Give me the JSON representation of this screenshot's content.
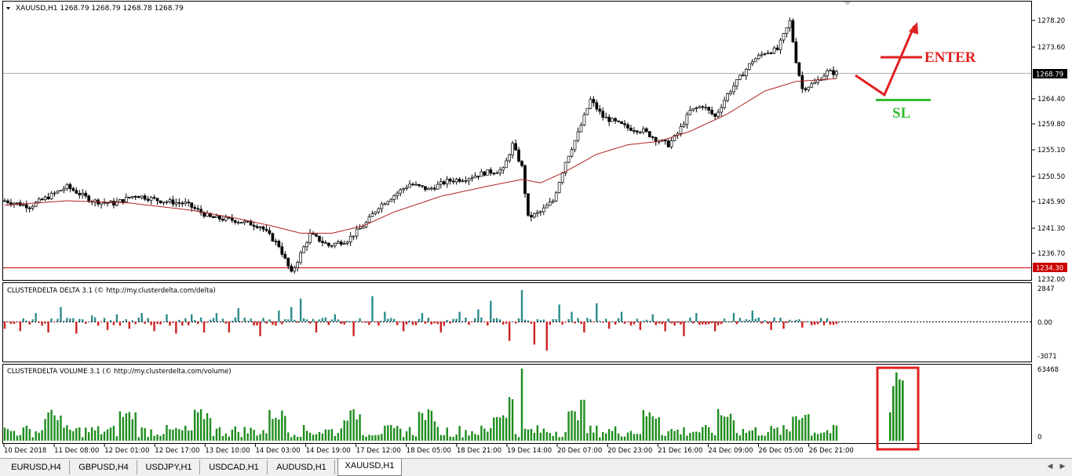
{
  "chart_data": [
    {
      "type": "candlestick",
      "title": "XAUUSD,H1  1268.79 1268.79 1268.78 1268.79",
      "ylim": [
        1232.0,
        1280.3
      ],
      "yticks": [
        "1278.20",
        "1273.60",
        "1268.79",
        "1264.40",
        "1259.80",
        "1255.10",
        "1250.50",
        "1245.90",
        "1241.30",
        "1236.70",
        "1232.00"
      ],
      "ytick_values": [
        1278.2,
        1273.6,
        1268.79,
        1264.4,
        1259.8,
        1255.1,
        1250.5,
        1245.9,
        1241.3,
        1236.7,
        1232.0
      ],
      "xticks": [
        "10 Dec 2018",
        "11 Dec 08:00",
        "12 Dec 01:00",
        "12 Dec 17:00",
        "13 Dec 10:00",
        "14 Dec 03:00",
        "14 Dec 19:00",
        "17 Dec 12:00",
        "18 Dec 05:00",
        "18 Dec 21:00",
        "19 Dec 14:00",
        "20 Dec 07:00",
        "20 Dec 23:00",
        "21 Dec 16:00",
        "24 Dec 09:00",
        "26 Dec 05:00",
        "26 Dec 21:00"
      ],
      "price_label": "1268.79",
      "level_line": {
        "value": 1234.3,
        "label": "1234.30",
        "color": "#cc0000"
      },
      "moving_average_color": "#b22222",
      "close_path": [
        [
          0,
          1246
        ],
        [
          8,
          1245
        ],
        [
          15,
          1247
        ],
        [
          20,
          1248.5
        ],
        [
          28,
          1246
        ],
        [
          35,
          1245.5
        ],
        [
          42,
          1247
        ],
        [
          50,
          1246
        ],
        [
          58,
          1245.5
        ],
        [
          66,
          1243
        ],
        [
          74,
          1242.5
        ],
        [
          82,
          1241.5
        ],
        [
          88,
          1238
        ],
        [
          92,
          1233
        ],
        [
          98,
          1240
        ],
        [
          104,
          1238
        ],
        [
          110,
          1239
        ],
        [
          116,
          1242
        ],
        [
          120,
          1245
        ],
        [
          125,
          1247
        ],
        [
          130,
          1249
        ],
        [
          136,
          1248
        ],
        [
          142,
          1249.5
        ],
        [
          148,
          1250
        ],
        [
          154,
          1251
        ],
        [
          160,
          1251.5
        ],
        [
          163,
          1256
        ],
        [
          166,
          1252
        ],
        [
          168,
          1243
        ],
        [
          172,
          1244
        ],
        [
          176,
          1246
        ],
        [
          180,
          1253
        ],
        [
          184,
          1258
        ],
        [
          188,
          1264
        ],
        [
          192,
          1261
        ],
        [
          196,
          1260
        ],
        [
          200,
          1259
        ],
        [
          205,
          1258.5
        ],
        [
          209,
          1257
        ],
        [
          213,
          1256
        ],
        [
          216,
          1258
        ],
        [
          220,
          1262
        ],
        [
          224,
          1263
        ],
        [
          228,
          1261
        ],
        [
          232,
          1265
        ],
        [
          236,
          1268
        ],
        [
          240,
          1271
        ],
        [
          244,
          1272.5
        ],
        [
          248,
          1273
        ],
        [
          252,
          1278
        ],
        [
          254,
          1271
        ],
        [
          256,
          1266
        ],
        [
          260,
          1267
        ],
        [
          264,
          1269
        ],
        [
          267,
          1268.8
        ]
      ],
      "ma_path": [
        [
          0,
          1245.2
        ],
        [
          20,
          1246
        ],
        [
          40,
          1245.6
        ],
        [
          60,
          1244.3
        ],
        [
          75,
          1242.8
        ],
        [
          85,
          1241.6
        ],
        [
          95,
          1240.2
        ],
        [
          105,
          1240.2
        ],
        [
          115,
          1241.5
        ],
        [
          125,
          1244
        ],
        [
          140,
          1246.8
        ],
        [
          155,
          1248.6
        ],
        [
          166,
          1249.8
        ],
        [
          172,
          1249.2
        ],
        [
          180,
          1251.2
        ],
        [
          190,
          1254.3
        ],
        [
          200,
          1256
        ],
        [
          210,
          1256.6
        ],
        [
          220,
          1258.4
        ],
        [
          232,
          1261.5
        ],
        [
          244,
          1265.6
        ],
        [
          254,
          1267.3
        ],
        [
          267,
          1267.8
        ]
      ],
      "annotations": [
        {
          "text": "ENTER",
          "color": "#e02020"
        },
        {
          "text": "SL",
          "color": "#33bb33"
        }
      ]
    },
    {
      "type": "bar",
      "title": "CLUSTERDELTA DELTA 3.1 (© http://my.clusterdelta.com/delta)",
      "yticks": [
        "2847",
        "0.00",
        "-3071"
      ],
      "ylim": [
        -3071,
        2847
      ],
      "positive_color": "#2e8b8b",
      "negative_color": "#cc2222",
      "highlights": [
        [
          0,
          -600
        ],
        [
          5,
          -800
        ],
        [
          10,
          700
        ],
        [
          14,
          -900
        ],
        [
          18,
          1200
        ],
        [
          23,
          -1000
        ],
        [
          28,
          500
        ],
        [
          33,
          -700
        ],
        [
          36,
          600
        ],
        [
          40,
          -600
        ],
        [
          44,
          700
        ],
        [
          48,
          -800
        ],
        [
          52,
          600
        ],
        [
          55,
          -1000
        ],
        [
          60,
          600
        ],
        [
          64,
          -900
        ],
        [
          68,
          700
        ],
        [
          72,
          -900
        ],
        [
          75,
          1100
        ],
        [
          82,
          -1200
        ],
        [
          88,
          900
        ],
        [
          92,
          1200
        ],
        [
          95,
          1900
        ],
        [
          100,
          -900
        ],
        [
          106,
          600
        ],
        [
          112,
          -1200
        ],
        [
          118,
          2100
        ],
        [
          122,
          800
        ],
        [
          128,
          -800
        ],
        [
          134,
          700
        ],
        [
          140,
          -900
        ],
        [
          146,
          800
        ],
        [
          152,
          1000
        ],
        [
          156,
          1700
        ],
        [
          162,
          -1600
        ],
        [
          166,
          2600
        ],
        [
          170,
          -1900
        ],
        [
          174,
          -2400
        ],
        [
          178,
          1400
        ],
        [
          182,
          800
        ],
        [
          186,
          -900
        ],
        [
          190,
          1500
        ],
        [
          194,
          -600
        ],
        [
          198,
          800
        ],
        [
          204,
          -700
        ],
        [
          208,
          600
        ],
        [
          212,
          -800
        ],
        [
          218,
          -1200
        ],
        [
          222,
          700
        ],
        [
          228,
          -800
        ],
        [
          234,
          700
        ],
        [
          240,
          900
        ],
        [
          246,
          -700
        ],
        [
          250,
          -600
        ],
        [
          256,
          -500
        ],
        [
          262,
          300
        ]
      ]
    },
    {
      "type": "bar",
      "title": "CLUSTERDELTA VOLUME 3.1 (© http://my.clusterdelta.com/volume)",
      "yticks": [
        "63468",
        "0"
      ],
      "ylim": [
        0,
        63468
      ],
      "bar_color": "#1e8c1e",
      "highlight_box_color": "#e02020",
      "highlight_values": [
        25000,
        48000,
        60000,
        54000,
        53000
      ]
    }
  ],
  "tabs": [
    {
      "label": "EURUSD,H4"
    },
    {
      "label": "GBPUSD,H4"
    },
    {
      "label": "USDJPY,H1"
    },
    {
      "label": "USDCAD,H1"
    },
    {
      "label": "AUDUSD,H1"
    },
    {
      "label": "XAUUSD,H1",
      "active": true
    }
  ]
}
